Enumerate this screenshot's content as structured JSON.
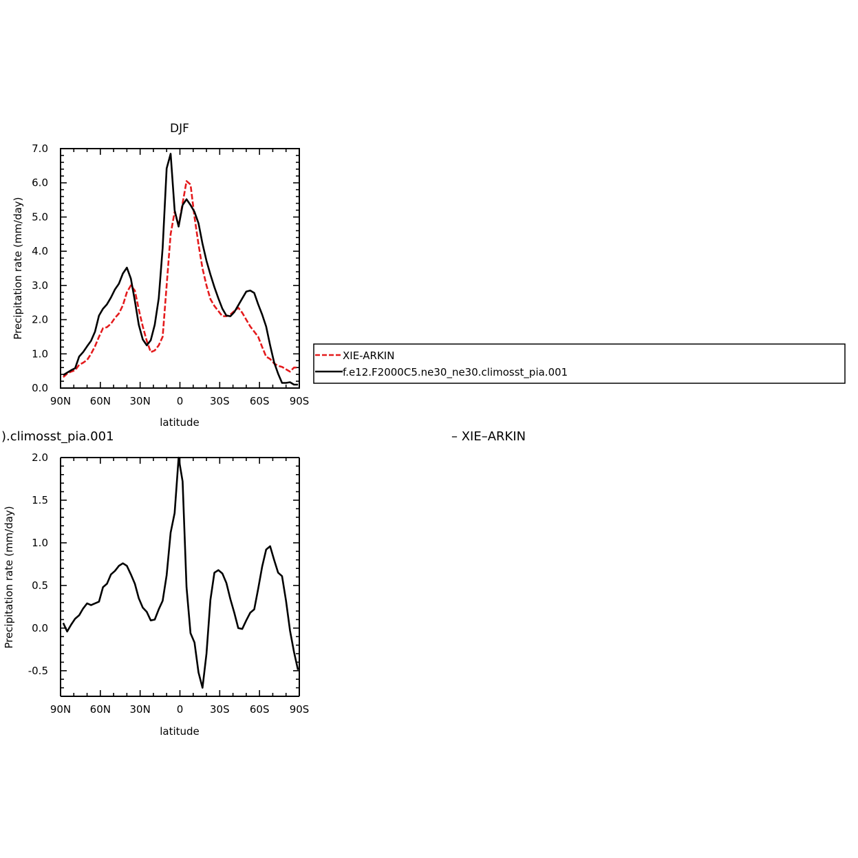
{
  "chart_data": [
    {
      "type": "line",
      "title": "DJF",
      "xlabel": "latitude",
      "ylabel": "Precipitation rate (mm/day)",
      "xlim": [
        -90,
        90
      ],
      "ylim": [
        0,
        7
      ],
      "x_ticks": [
        -90,
        -60,
        -30,
        0,
        30,
        60,
        90
      ],
      "x_tick_labels": [
        "90N",
        "60N",
        "30N",
        "0",
        "30S",
        "60S",
        "90S"
      ],
      "y_ticks": [
        0,
        1,
        2,
        3,
        4,
        5,
        6,
        7
      ],
      "y_tick_labels": [
        "0.0",
        "1.0",
        "2.0",
        "3.0",
        "4.0",
        "5.0",
        "6.0",
        "7.0"
      ],
      "grid": false,
      "legend": {
        "placement": "right, outside plot",
        "entries": [
          "XIE-ARKIN",
          "f.e12.F2000C5.ne30_ne30.climosst_pia.001"
        ]
      },
      "x": [
        -88,
        -85,
        -82,
        -79,
        -76,
        -73,
        -70,
        -67,
        -64,
        -61,
        -58,
        -55,
        -52,
        -49,
        -46,
        -43,
        -40,
        -37,
        -34,
        -31,
        -28,
        -25,
        -22,
        -19,
        -16,
        -13,
        -10,
        -7,
        -4,
        -1,
        2,
        5,
        8,
        11,
        14,
        17,
        20,
        23,
        26,
        29,
        32,
        35,
        38,
        41,
        44,
        47,
        50,
        53,
        56,
        59,
        62,
        65,
        68,
        71,
        74,
        77,
        80,
        83,
        86,
        89
      ],
      "series": [
        {
          "name": "XIE-ARKIN",
          "color": "#e41a1c",
          "dash": "dashed",
          "values": [
            0.32,
            0.42,
            0.48,
            0.52,
            0.68,
            0.74,
            0.82,
            1.0,
            1.22,
            1.5,
            1.75,
            1.78,
            1.88,
            2.05,
            2.18,
            2.42,
            2.8,
            3.0,
            2.85,
            2.3,
            1.8,
            1.38,
            1.05,
            1.1,
            1.25,
            1.5,
            3.0,
            4.5,
            5.15,
            4.75,
            5.4,
            6.05,
            5.95,
            5.0,
            4.2,
            3.5,
            3.0,
            2.6,
            2.4,
            2.25,
            2.1,
            2.1,
            2.15,
            2.25,
            2.35,
            2.2,
            2.0,
            1.8,
            1.65,
            1.5,
            1.2,
            0.92,
            0.85,
            0.72,
            0.65,
            0.62,
            0.55,
            0.48,
            0.6,
            0.6
          ]
        },
        {
          "name": "f.e12.F2000C5.ne30_ne30.climosst_pia.001",
          "color": "#000000",
          "dash": "solid",
          "values": [
            0.38,
            0.45,
            0.52,
            0.58,
            0.92,
            1.05,
            1.22,
            1.38,
            1.65,
            2.12,
            2.32,
            2.45,
            2.65,
            2.88,
            3.05,
            3.35,
            3.52,
            3.2,
            2.55,
            1.85,
            1.42,
            1.25,
            1.4,
            1.85,
            2.62,
            4.1,
            6.42,
            6.85,
            5.2,
            4.72,
            5.35,
            5.52,
            5.35,
            5.15,
            4.82,
            4.22,
            3.72,
            3.32,
            2.95,
            2.62,
            2.32,
            2.12,
            2.1,
            2.22,
            2.42,
            2.62,
            2.82,
            2.85,
            2.78,
            2.45,
            2.15,
            1.8,
            1.25,
            0.75,
            0.42,
            0.15,
            0.15,
            0.17,
            0.1,
            0.1
          ]
        }
      ]
    },
    {
      "type": "line",
      "title": ").climosst_pia.001",
      "title_right": "– XIE–ARKIN",
      "xlabel": "latitude",
      "ylabel": "Precipitation rate (mm/day)",
      "xlim": [
        -90,
        90
      ],
      "ylim": [
        -0.8,
        2.0
      ],
      "x_ticks": [
        -90,
        -60,
        -30,
        0,
        30,
        60,
        90
      ],
      "x_tick_labels": [
        "90N",
        "60N",
        "30N",
        "0",
        "30S",
        "60S",
        "90S"
      ],
      "y_ticks": [
        -0.5,
        0,
        0.5,
        1.0,
        1.5,
        2.0
      ],
      "y_tick_labels": [
        "-0.5",
        "0.0",
        "0.5",
        "1.0",
        "1.5",
        "2.0"
      ],
      "grid": false,
      "x": [
        -88,
        -85,
        -82,
        -79,
        -76,
        -73,
        -70,
        -67,
        -64,
        -61,
        -58,
        -55,
        -52,
        -49,
        -46,
        -43,
        -40,
        -37,
        -34,
        -31,
        -28,
        -25,
        -22,
        -19,
        -16,
        -13,
        -10,
        -7,
        -4,
        -1,
        2,
        5,
        8,
        11,
        14,
        17,
        20,
        23,
        26,
        29,
        32,
        35,
        38,
        41,
        44,
        47,
        50,
        53,
        56,
        59,
        62,
        65,
        68,
        71,
        74,
        77,
        80,
        83,
        86,
        89
      ],
      "series": [
        {
          "name": "",
          "color": "#000000",
          "dash": "solid",
          "values": [
            0.06,
            -0.04,
            0.04,
            0.11,
            0.15,
            0.23,
            0.29,
            0.27,
            0.29,
            0.31,
            0.48,
            0.52,
            0.63,
            0.67,
            0.73,
            0.76,
            0.73,
            0.63,
            0.52,
            0.35,
            0.24,
            0.19,
            0.09,
            0.1,
            0.22,
            0.32,
            0.62,
            1.12,
            1.35,
            2.0,
            1.72,
            0.48,
            -0.06,
            -0.17,
            -0.52,
            -0.7,
            -0.3,
            0.33,
            0.65,
            0.68,
            0.64,
            0.53,
            0.34,
            0.18,
            0.0,
            -0.01,
            0.09,
            0.18,
            0.22,
            0.46,
            0.72,
            0.92,
            0.96,
            0.8,
            0.65,
            0.61,
            0.32,
            -0.03,
            -0.28,
            -0.49
          ]
        }
      ]
    }
  ]
}
